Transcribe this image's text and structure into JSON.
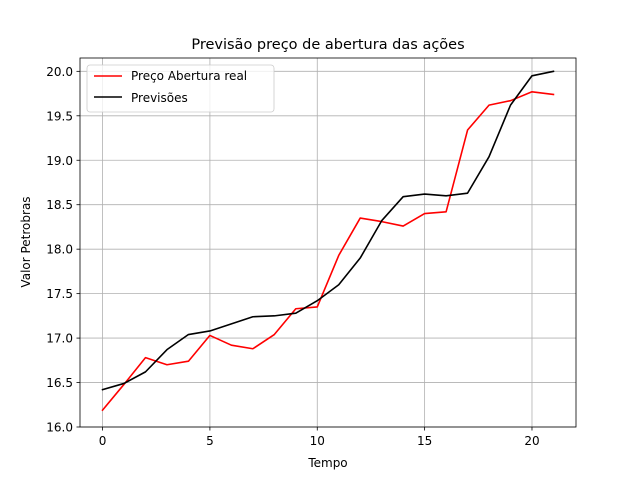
{
  "chart_data": {
    "type": "line",
    "title": "Previsão preço de abertura das ações",
    "xlabel": "Tempo",
    "ylabel": "Valor Petrobras",
    "x": [
      0,
      1,
      2,
      3,
      4,
      5,
      6,
      7,
      8,
      9,
      10,
      11,
      12,
      13,
      14,
      15,
      16,
      17,
      18,
      19,
      20,
      21
    ],
    "xlim": [
      -1.05,
      22.05
    ],
    "ylim": [
      16.0,
      20.15
    ],
    "xticks": [
      0,
      5,
      10,
      15,
      20
    ],
    "xtick_labels": [
      "0",
      "5",
      "10",
      "15",
      "20"
    ],
    "yticks": [
      16.0,
      16.5,
      17.0,
      17.5,
      18.0,
      18.5,
      19.0,
      19.5,
      20.0
    ],
    "ytick_labels": [
      "16.0",
      "16.5",
      "17.0",
      "17.5",
      "18.0",
      "18.5",
      "19.0",
      "19.5",
      "20.0"
    ],
    "grid": true,
    "legend_position": "top-left",
    "series": [
      {
        "name": "Preço Abertura real",
        "color": "#ff0000",
        "values": [
          16.19,
          16.48,
          16.78,
          16.7,
          16.74,
          17.03,
          16.92,
          16.88,
          17.04,
          17.33,
          17.35,
          17.93,
          18.35,
          18.31,
          18.26,
          18.4,
          18.42,
          19.34,
          19.62,
          19.67,
          19.77,
          19.74
        ]
      },
      {
        "name": "Previsões",
        "color": "#000000",
        "values": [
          16.42,
          16.49,
          16.62,
          16.87,
          17.04,
          17.08,
          17.16,
          17.24,
          17.25,
          17.28,
          17.42,
          17.6,
          17.9,
          18.32,
          18.59,
          18.62,
          18.6,
          18.63,
          19.04,
          19.62,
          19.95,
          20.0
        ]
      }
    ]
  }
}
